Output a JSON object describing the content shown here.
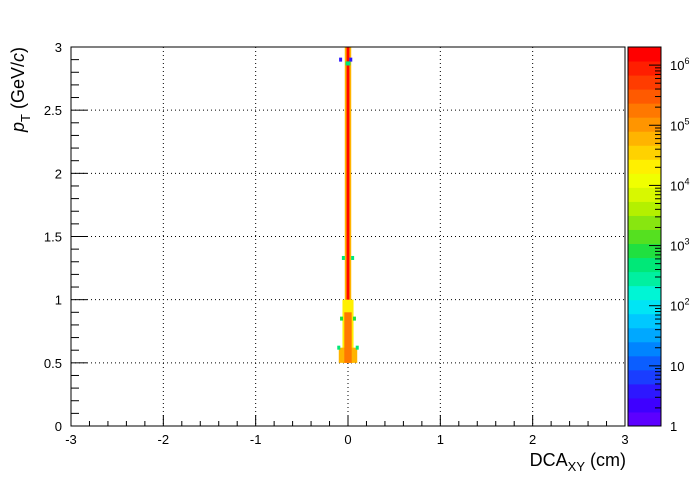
{
  "chart_data": {
    "type": "heatmap",
    "x_axis": {
      "label_main": "DCA",
      "label_sub": "XY",
      "label_unit": "(cm)",
      "range": [
        -3,
        3
      ],
      "tick_labels": [
        "-3",
        "-2",
        "-1",
        "0",
        "1",
        "2",
        "3"
      ]
    },
    "y_axis": {
      "label_main": "p",
      "label_sub": "T",
      "label_unit_pre": "(GeV/",
      "label_unit_var": "c",
      "label_unit_post": ")",
      "range": [
        0,
        3
      ],
      "tick_labels": [
        "0",
        "0.5",
        "1",
        "1.5",
        "2",
        "2.5",
        "3"
      ]
    },
    "z_axis": {
      "scale": "log",
      "range": [
        1,
        2000000
      ],
      "tick_labels": [
        {
          "value": 1,
          "base": "1",
          "exp": ""
        },
        {
          "value": 10,
          "base": "10",
          "exp": ""
        },
        {
          "value": 100,
          "base": "10",
          "exp": "2"
        },
        {
          "value": 1000,
          "base": "10",
          "exp": "3"
        },
        {
          "value": 10000,
          "base": "10",
          "exp": "4"
        },
        {
          "value": 100000,
          "base": "10",
          "exp": "5"
        },
        {
          "value": 1000000,
          "base": "10",
          "exp": "6"
        }
      ]
    },
    "grid": true,
    "bins": [
      {
        "x": -0.08,
        "y": 2.9,
        "value": 3
      },
      {
        "x": 0.03,
        "y": 2.9,
        "value": 3
      },
      {
        "x": -0.01,
        "y": 2.87,
        "value": 500
      },
      {
        "x": 0.01,
        "y": 2.87,
        "value": 500
      },
      {
        "x": -0.05,
        "y": 1.33,
        "value": 500
      },
      {
        "x": 0.05,
        "y": 1.33,
        "value": 500
      },
      {
        "x": -0.07,
        "y": 0.85,
        "value": 800
      },
      {
        "x": 0.07,
        "y": 0.85,
        "value": 800
      },
      {
        "x": -0.1,
        "y": 0.62,
        "value": 600
      },
      {
        "x": 0.1,
        "y": 0.62,
        "value": 600
      }
    ],
    "core_profile": [
      {
        "ylo": 0.5,
        "yhi": 3.0,
        "halfwidth": 0.035,
        "value": 50000
      },
      {
        "ylo": 0.5,
        "yhi": 3.0,
        "halfwidth": 0.02,
        "value": 300000
      },
      {
        "ylo": 0.5,
        "yhi": 3.0,
        "halfwidth": 0.01,
        "value": 1500000
      },
      {
        "ylo": 0.5,
        "yhi": 1.0,
        "halfwidth": 0.06,
        "value": 20000
      },
      {
        "ylo": 0.5,
        "yhi": 0.62,
        "halfwidth": 0.1,
        "value": 60000
      },
      {
        "ylo": 0.5,
        "yhi": 0.9,
        "halfwidth": 0.04,
        "value": 200000
      }
    ],
    "palette": [
      "#5c00ff",
      "#3e00ff",
      "#2d17ff",
      "#1a3dff",
      "#0b5eff",
      "#0084ff",
      "#00a8ff",
      "#00c8ff",
      "#00e5f5",
      "#00f5d5",
      "#00f0a0",
      "#00e878",
      "#20e040",
      "#55e020",
      "#88e610",
      "#b4f000",
      "#d8f800",
      "#f0ff00",
      "#fff000",
      "#ffd200",
      "#ffb400",
      "#ff9500",
      "#ff7800",
      "#ff5a00",
      "#ff3c00",
      "#ff1e00",
      "#ff0000"
    ]
  }
}
